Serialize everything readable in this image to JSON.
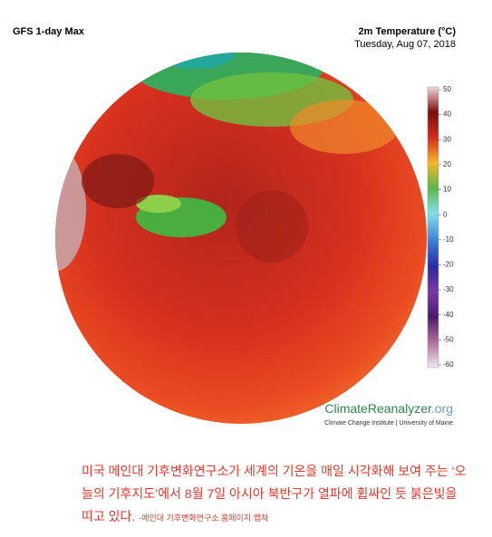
{
  "header": {
    "model": "GFS 1-day Max",
    "title": "2m Temperature (°C)",
    "date": "Tuesday, Aug 07, 2018"
  },
  "colorbar": {
    "ticks": [
      50,
      40,
      30,
      20,
      10,
      0,
      -10,
      -20,
      -30,
      -40,
      -50,
      -60
    ]
  },
  "brand": {
    "name": "ClimateReanalyzer",
    "domain": ".org",
    "sub": "Climate Change Institute | University of Maine"
  },
  "caption": {
    "lines": [
      "미국 메인대 기후변화연구소가 세계의 기온을 매일 시각화해 보여 주는 ‘오",
      "늘의 기후지도’에서 8월 7일 아시아 북반구가 열파에 휩싸인 듯 붉은빛을",
      "띠고 있다."
    ],
    "credit": "-메인대 기후변화연구소 홈페이지 캡처"
  }
}
